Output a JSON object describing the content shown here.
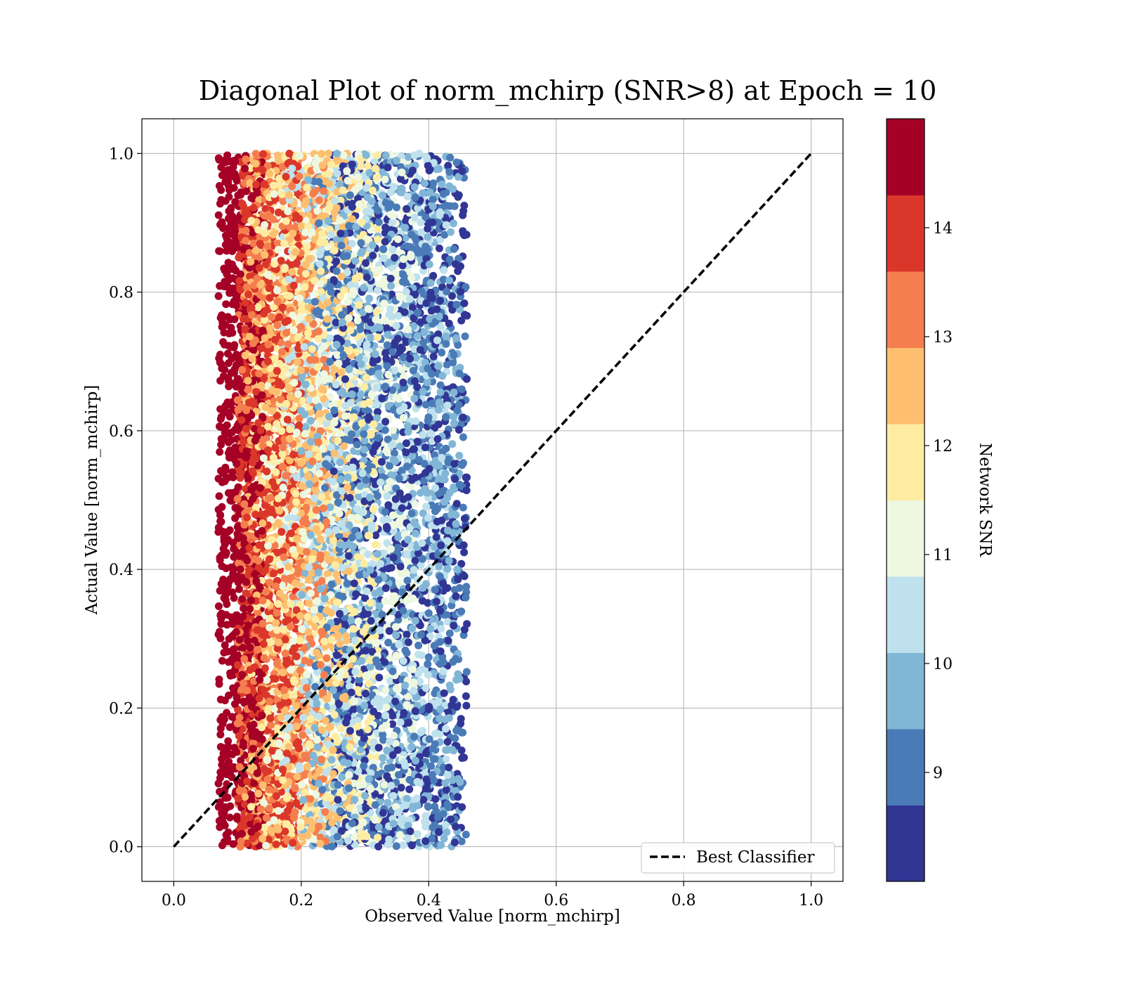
{
  "chart_data": {
    "type": "scatter",
    "title": "Diagonal Plot of norm_mchirp (SNR>8) at Epoch = 10",
    "xlabel": "Observed Value [norm_mchirp]",
    "ylabel": "Actual Value [norm_mchirp]",
    "xlim": [
      -0.05,
      1.05
    ],
    "ylim": [
      -0.05,
      1.05
    ],
    "xticks": [
      "0.0",
      "0.2",
      "0.4",
      "0.6",
      "0.8",
      "1.0"
    ],
    "yticks": [
      "0.0",
      "0.2",
      "0.4",
      "0.6",
      "0.8",
      "1.0"
    ],
    "grid": true,
    "legend": {
      "position": "lower-right",
      "entries": [
        "Best Classifier"
      ]
    },
    "reference_line": {
      "name": "Best Classifier",
      "style": "dashed",
      "color": "#000000",
      "x": [
        0.0,
        1.0
      ],
      "y": [
        0.0,
        1.0
      ]
    },
    "colorbar": {
      "label": "Network SNR",
      "range": [
        8,
        15
      ],
      "ticks": [
        "9",
        "10",
        "11",
        "12",
        "13",
        "14"
      ],
      "tick_values": [
        9,
        10,
        11,
        12,
        13,
        14
      ],
      "bands": [
        "#313695",
        "#4a7bb7",
        "#82b6d6",
        "#bfe1ed",
        "#eef8e0",
        "#feeca2",
        "#fdbf6f",
        "#f57e4f",
        "#da372a",
        "#a50026"
      ]
    },
    "point_distribution": {
      "count": 9000,
      "y_range": [
        0.0,
        1.0
      ],
      "snr_bands": [
        {
          "snr": [
            14.3,
            15.0
          ],
          "x_range": [
            0.07,
            0.14
          ]
        },
        {
          "snr": [
            13.6,
            14.3
          ],
          "x_range": [
            0.1,
            0.2
          ]
        },
        {
          "snr": [
            12.9,
            13.6
          ],
          "x_range": [
            0.1,
            0.24
          ]
        },
        {
          "snr": [
            12.2,
            12.9
          ],
          "x_range": [
            0.11,
            0.28
          ]
        },
        {
          "snr": [
            11.5,
            12.2
          ],
          "x_range": [
            0.12,
            0.32
          ]
        },
        {
          "snr": [
            10.8,
            11.5
          ],
          "x_range": [
            0.14,
            0.38
          ]
        },
        {
          "snr": [
            10.1,
            10.8
          ],
          "x_range": [
            0.17,
            0.43
          ]
        },
        {
          "snr": [
            9.4,
            10.1
          ],
          "x_range": [
            0.2,
            0.45
          ]
        },
        {
          "snr": [
            8.7,
            9.4
          ],
          "x_range": [
            0.22,
            0.46
          ]
        },
        {
          "snr": [
            8.0,
            8.7
          ],
          "x_range": [
            0.25,
            0.46
          ]
        }
      ]
    }
  }
}
